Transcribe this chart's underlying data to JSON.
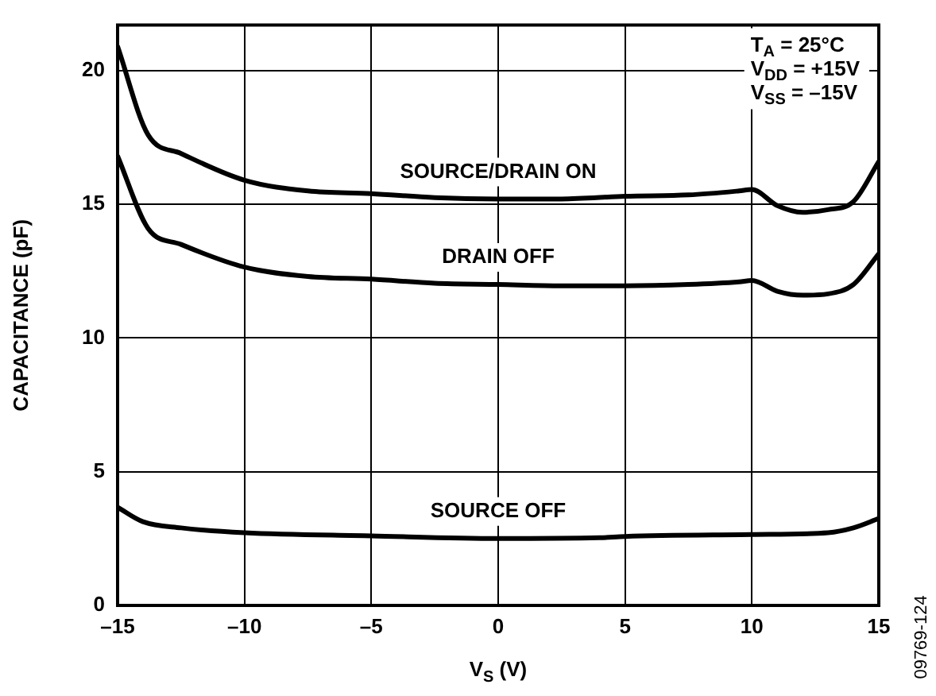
{
  "chart_data": {
    "type": "line",
    "xlabel": "V$_{S}$ (V)",
    "ylabel": "CAPACITANCE (pF)",
    "annotations": [
      "T$_{A}$ = 25°C",
      "V$_{DD}$ = +15V",
      "V$_{SS}$ = –15V",
      "09769-124"
    ],
    "xlim": [
      -15,
      15
    ],
    "xticks": [
      {
        "value": -15,
        "label": "–15"
      },
      {
        "value": -10,
        "label": "–10"
      },
      {
        "value": -5,
        "label": "–5"
      },
      0,
      5,
      10,
      15
    ],
    "ylim": [
      0,
      21.7
    ],
    "yticks": [
      0,
      5,
      10,
      15,
      20
    ],
    "grid": true,
    "legend": false,
    "marker": "none",
    "line_style": "solid",
    "series": [
      {
        "name": "SOURCE/DRAIN ON",
        "color": "#000000",
        "x": [
          -15,
          -13.8,
          -12.5,
          -10,
          -7.5,
          -5,
          -2.5,
          0,
          2.5,
          5,
          7.5,
          9.5,
          10,
          11,
          12,
          13,
          14,
          15
        ],
        "values": [
          20.9,
          17.6,
          16.9,
          15.9,
          15.5,
          15.4,
          15.25,
          15.2,
          15.2,
          15.3,
          15.35,
          15.5,
          15.55,
          14.95,
          14.7,
          14.8,
          15.1,
          16.6
        ]
      },
      {
        "name": "DRAIN OFF",
        "color": "#000000",
        "x": [
          -15,
          -13.8,
          -12.5,
          -10,
          -7.5,
          -5,
          -2.5,
          0,
          2.5,
          5,
          7.5,
          9.5,
          10,
          11,
          12,
          13,
          14,
          15
        ],
        "values": [
          16.8,
          14.1,
          13.5,
          12.65,
          12.3,
          12.2,
          12.05,
          12.0,
          11.95,
          11.95,
          12.0,
          12.1,
          12.15,
          11.75,
          11.6,
          11.65,
          12.0,
          13.15
        ]
      },
      {
        "name": "SOURCE OFF",
        "color": "#000000",
        "x": [
          -15,
          -14,
          -12.5,
          -10,
          -5,
          0,
          4,
          5,
          10,
          13,
          14,
          15
        ],
        "values": [
          3.67,
          3.13,
          2.9,
          2.72,
          2.6,
          2.5,
          2.53,
          2.58,
          2.65,
          2.72,
          2.9,
          3.25
        ]
      }
    ]
  }
}
